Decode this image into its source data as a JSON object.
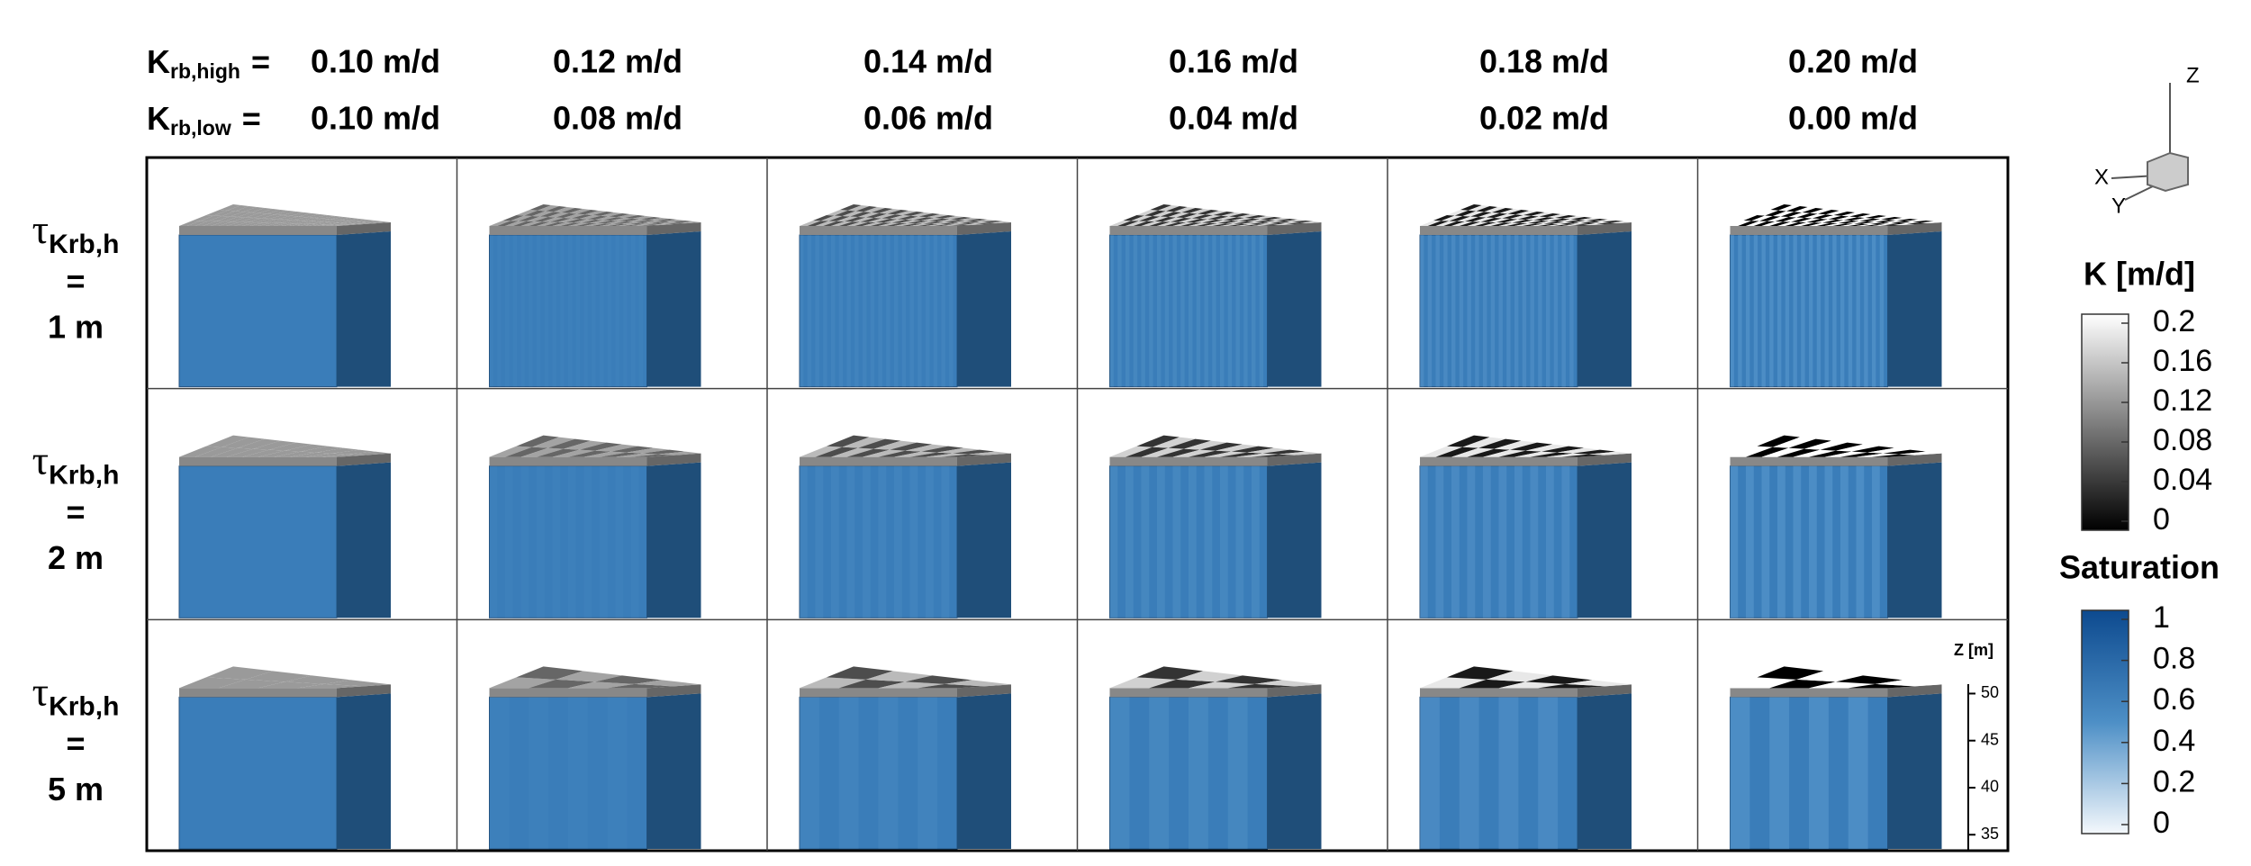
{
  "header": {
    "k_high": {
      "symbol": "K",
      "subscript": "rb,high",
      "equals": "="
    },
    "k_low": {
      "symbol": "K",
      "subscript": "rb,low",
      "equals": "="
    },
    "k_high_values": [
      "0.10 m/d",
      "0.12 m/d",
      "0.14 m/d",
      "0.16 m/d",
      "0.18 m/d",
      "0.20 m/d"
    ],
    "k_low_values": [
      "0.10 m/d",
      "0.08 m/d",
      "0.06 m/d",
      "0.04 m/d",
      "0.02 m/d",
      "0.00 m/d"
    ]
  },
  "rows": [
    {
      "symbol": "τ",
      "subscript": "Krb,h",
      "equals": "=",
      "value": "1 m"
    },
    {
      "symbol": "τ",
      "subscript": "Krb,h",
      "equals": "=",
      "value": "2 m"
    },
    {
      "symbol": "τ",
      "subscript": "Krb,h",
      "equals": "=",
      "value": "5 m"
    }
  ],
  "axes_triad": {
    "z": "Z",
    "x": "X",
    "y": "Y"
  },
  "k_colorbar": {
    "title": "K [m/d]",
    "lim": [
      0,
      0.2
    ],
    "ticks": [
      0.2,
      0.16,
      0.12,
      0.08,
      0.04,
      0
    ]
  },
  "saturation_colorbar": {
    "title": "Saturation",
    "lim": [
      0,
      1
    ],
    "ticks": [
      1,
      0.8,
      0.6,
      0.4,
      0.2,
      0
    ]
  },
  "z_axis": {
    "label": "Z [m]",
    "lim": [
      33.3,
      51
    ],
    "ticks": [
      50,
      45,
      40,
      35
    ]
  }
}
